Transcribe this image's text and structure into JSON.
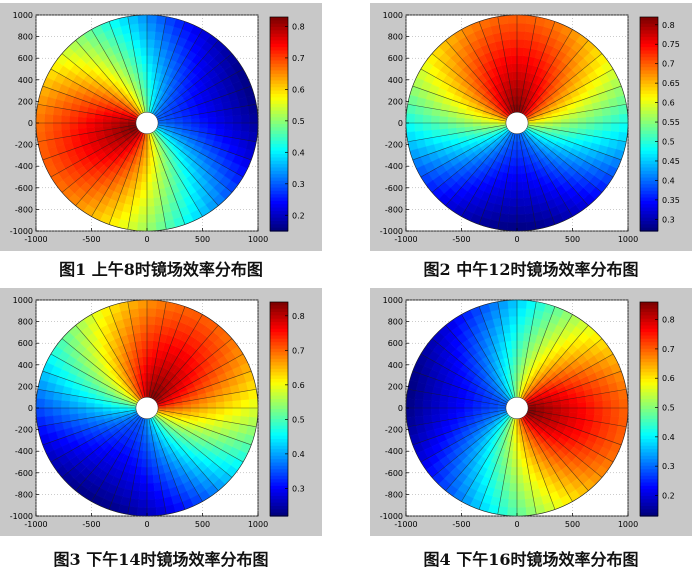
{
  "chart_data": [
    {
      "type": "heatmap",
      "title": "",
      "caption": "图1 上午8时镜场效率分布图",
      "xlim": [
        -1000,
        1000
      ],
      "ylim": [
        -1000,
        1000
      ],
      "x_ticks": [
        "-1000",
        "-500",
        "0",
        "500",
        "1000"
      ],
      "y_ticks": [
        "1000",
        "800",
        "600",
        "400",
        "200",
        "0",
        "-200",
        "-400",
        "-600",
        "-800",
        "-1000"
      ],
      "colorbar": {
        "min": 0.15,
        "max": 0.83,
        "ticks": [
          "0.8",
          "0.7",
          "0.6",
          "0.5",
          "0.4",
          "0.3",
          "0.2"
        ]
      },
      "field": {
        "min": 0.15,
        "max": 0.83,
        "peak_angle_deg": 200
      },
      "grid": true
    },
    {
      "type": "heatmap",
      "title": "",
      "caption": "图2 中午12时镜场效率分布图",
      "xlim": [
        -1000,
        1000
      ],
      "ylim": [
        -1000,
        1000
      ],
      "x_ticks": [
        "-1000",
        "-500",
        "0",
        "500",
        "1000"
      ],
      "y_ticks": [
        "1000",
        "800",
        "600",
        "400",
        "200",
        "0",
        "-200",
        "-400",
        "-600",
        "-800",
        "-1000"
      ],
      "colorbar": {
        "min": 0.27,
        "max": 0.82,
        "ticks": [
          "0.8",
          "0.75",
          "0.7",
          "0.65",
          "0.6",
          "0.55",
          "0.5",
          "0.45",
          "0.4",
          "0.35",
          "0.3"
        ]
      },
      "field": {
        "min": 0.27,
        "max": 0.82,
        "peak_angle_deg": 90
      },
      "grid": true
    },
    {
      "type": "heatmap",
      "title": "",
      "caption": "图3 下午14时镜场效率分布图",
      "xlim": [
        -1000,
        1000
      ],
      "ylim": [
        -1000,
        1000
      ],
      "x_ticks": [
        "-1000",
        "-500",
        "0",
        "500",
        "1000"
      ],
      "y_ticks": [
        "1000",
        "800",
        "600",
        "400",
        "200",
        "0",
        "-200",
        "-400",
        "-600",
        "-800",
        "-1000"
      ],
      "colorbar": {
        "min": 0.22,
        "max": 0.84,
        "ticks": [
          "0.8",
          "0.7",
          "0.6",
          "0.5",
          "0.4",
          "0.3"
        ]
      },
      "field": {
        "min": 0.22,
        "max": 0.84,
        "peak_angle_deg": 60
      },
      "grid": true
    },
    {
      "type": "heatmap",
      "title": "",
      "caption": "图4 下午16时镜场效率分布图",
      "xlim": [
        -1000,
        1000
      ],
      "ylim": [
        -1000,
        1000
      ],
      "x_ticks": [
        "-1000",
        "-500",
        "0",
        "500",
        "1000"
      ],
      "y_ticks": [
        "1000",
        "800",
        "600",
        "400",
        "200",
        "0",
        "-200",
        "-400",
        "-600",
        "-800",
        "-1000"
      ],
      "colorbar": {
        "min": 0.13,
        "max": 0.86,
        "ticks": [
          "0.8",
          "0.7",
          "0.6",
          "0.5",
          "0.4",
          "0.3",
          "0.2"
        ]
      },
      "field": {
        "min": 0.13,
        "max": 0.86,
        "peak_angle_deg": -10
      },
      "grid": true
    }
  ]
}
